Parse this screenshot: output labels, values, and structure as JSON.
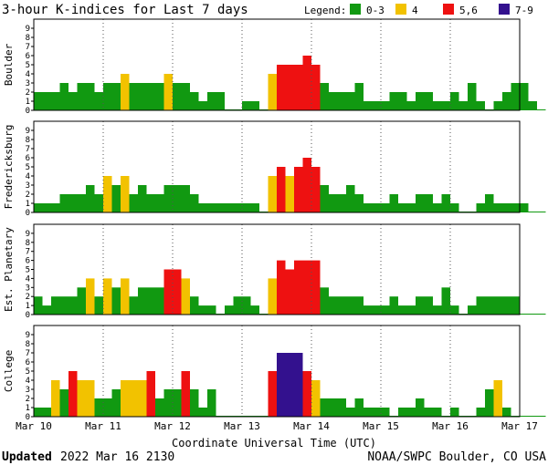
{
  "title": "3-hour K-indices for Last 7 days",
  "legend": {
    "label": "Legend:",
    "items": [
      {
        "label": "0-3",
        "color": "#119911"
      },
      {
        "label": "4",
        "color": "#f2c200"
      },
      {
        "label": "5,6",
        "color": "#ee1111"
      },
      {
        "label": "7-9",
        "color": "#33118e"
      }
    ]
  },
  "footer": {
    "updated_label": "Updated",
    "updated_value": "2022 Mar 16 2130",
    "source": "NOAA/SWPC Boulder, CO USA"
  },
  "chart_data": {
    "type": "bar",
    "xlabel": "Coordinate Universal Time (UTC)",
    "x_ticks": [
      "Mar 10",
      "Mar 11",
      "Mar 12",
      "Mar 13",
      "Mar 14",
      "Mar 15",
      "Mar 16",
      "Mar 17"
    ],
    "y_ticks": [
      "0",
      "1",
      "2",
      "3",
      "4",
      "5",
      "6",
      "7",
      "8",
      "9"
    ],
    "ylim": [
      0,
      9
    ],
    "bins_per_day": 8,
    "color_scale": [
      {
        "range": "0-3",
        "color": "#119911"
      },
      {
        "range": "4",
        "color": "#f2c200"
      },
      {
        "range": "5,6",
        "color": "#ee1111"
      },
      {
        "range": "7-9",
        "color": "#33118e"
      }
    ],
    "panels": [
      {
        "name": "Boulder",
        "values": [
          2,
          2,
          2,
          3,
          2,
          3,
          3,
          2,
          3,
          3,
          4,
          3,
          3,
          3,
          3,
          4,
          3,
          3,
          2,
          1,
          2,
          2,
          0,
          0,
          1,
          1,
          0,
          4,
          5,
          5,
          5,
          6,
          5,
          3,
          2,
          2,
          2,
          3,
          1,
          1,
          1,
          2,
          2,
          1,
          2,
          2,
          1,
          1,
          2,
          1,
          3,
          1,
          0,
          1,
          2,
          3,
          3,
          1,
          0
        ]
      },
      {
        "name": "Fredericksburg",
        "values": [
          1,
          1,
          1,
          2,
          2,
          2,
          3,
          2,
          4,
          3,
          4,
          2,
          3,
          2,
          2,
          3,
          3,
          3,
          2,
          1,
          1,
          1,
          1,
          1,
          1,
          1,
          0,
          4,
          5,
          4,
          5,
          6,
          5,
          3,
          2,
          2,
          3,
          2,
          1,
          1,
          1,
          2,
          1,
          1,
          2,
          2,
          1,
          2,
          1,
          0,
          0,
          1,
          2,
          1,
          1,
          1,
          1,
          0,
          0
        ]
      },
      {
        "name": "Est. Planetary",
        "values": [
          2,
          1,
          2,
          2,
          2,
          3,
          4,
          2,
          4,
          3,
          4,
          2,
          3,
          3,
          3,
          5,
          5,
          4,
          2,
          1,
          1,
          0,
          1,
          2,
          2,
          1,
          0,
          4,
          6,
          5,
          6,
          6,
          6,
          3,
          2,
          2,
          2,
          2,
          1,
          1,
          1,
          2,
          1,
          1,
          2,
          2,
          1,
          3,
          1,
          0,
          1,
          2,
          2,
          2,
          2,
          2,
          0,
          0,
          0
        ]
      },
      {
        "name": "College",
        "values": [
          1,
          1,
          4,
          3,
          5,
          4,
          4,
          2,
          2,
          3,
          4,
          4,
          4,
          5,
          2,
          3,
          3,
          5,
          3,
          1,
          3,
          0,
          0,
          0,
          0,
          0,
          0,
          5,
          7,
          7,
          7,
          5,
          4,
          2,
          2,
          2,
          1,
          2,
          1,
          1,
          1,
          0,
          1,
          1,
          2,
          1,
          1,
          0,
          1,
          0,
          0,
          1,
          3,
          4,
          1,
          0,
          0,
          0,
          0
        ]
      }
    ]
  }
}
